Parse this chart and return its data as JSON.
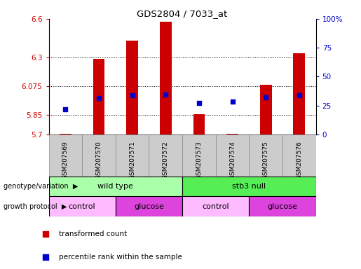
{
  "title": "GDS2804 / 7033_at",
  "samples": [
    "GSM207569",
    "GSM207570",
    "GSM207571",
    "GSM207572",
    "GSM207573",
    "GSM207574",
    "GSM207575",
    "GSM207576"
  ],
  "bar_values": [
    5.705,
    6.29,
    6.43,
    6.575,
    5.86,
    5.705,
    6.085,
    6.33
  ],
  "bar_bottom": 5.7,
  "dot_values": [
    5.895,
    5.985,
    6.005,
    6.01,
    5.945,
    5.955,
    5.99,
    6.005
  ],
  "ylim_min": 5.7,
  "ylim_max": 6.6,
  "yticks": [
    5.7,
    5.85,
    6.075,
    6.3,
    6.6
  ],
  "ytick_labels": [
    "5.7",
    "5.85",
    "6.075",
    "6.3",
    "6.6"
  ],
  "right_yticks": [
    0,
    25,
    50,
    75,
    100
  ],
  "right_ytick_labels": [
    "0",
    "25",
    "50",
    "75",
    "100%"
  ],
  "bar_color": "#cc0000",
  "dot_color": "#0000cc",
  "genotype_labels": [
    "wild type",
    "stb3 null"
  ],
  "genotype_col_ranges": [
    [
      0,
      3
    ],
    [
      4,
      7
    ]
  ],
  "genotype_color": "#aaffaa",
  "genotype_color2": "#55ee55",
  "protocol_labels": [
    "control",
    "glucose",
    "control",
    "glucose"
  ],
  "protocol_col_ranges": [
    [
      0,
      1
    ],
    [
      2,
      3
    ],
    [
      4,
      5
    ],
    [
      6,
      7
    ]
  ],
  "protocol_color_control": "#ffbbff",
  "protocol_color_glucose": "#dd44dd",
  "xlabel_genotype": "genotype/variation",
  "xlabel_protocol": "growth protocol",
  "tick_bg": "#cccccc",
  "legend_items": [
    "transformed count",
    "percentile rank within the sample"
  ],
  "legend_colors": [
    "#cc0000",
    "#0000cc"
  ]
}
